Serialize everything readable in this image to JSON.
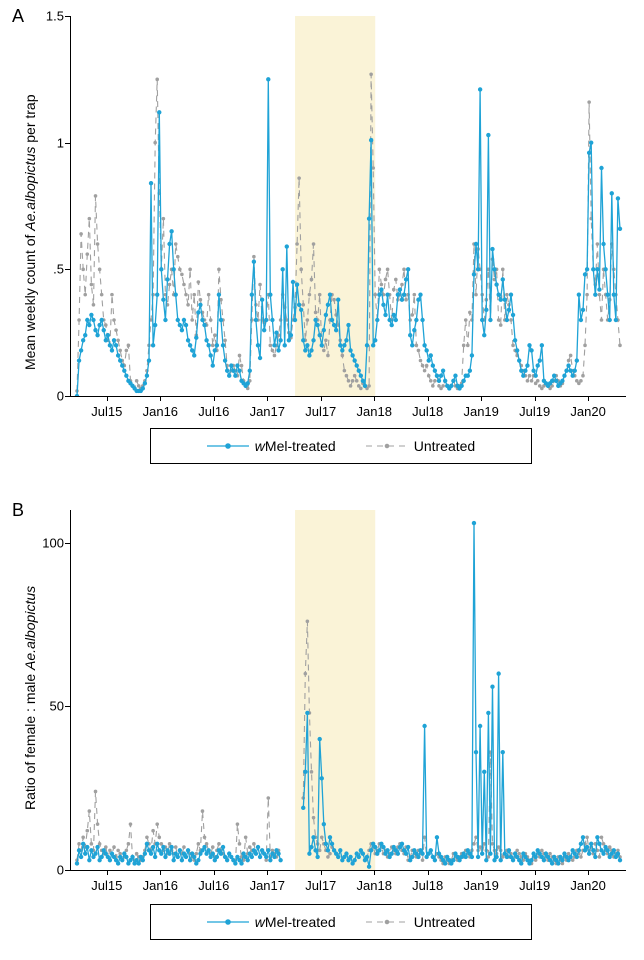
{
  "colors": {
    "treated": "#1fa3d6",
    "untreated": "#a0a0a0",
    "shade": "#f5e9b6",
    "axis": "#000000",
    "background": "#ffffff"
  },
  "legend": {
    "treated_label_prefix_italic": "w",
    "treated_label_rest": "Mel-treated",
    "untreated_label": "Untreated"
  },
  "panelA": {
    "label": "A",
    "type": "line",
    "ylabel_prefix": "Mean weekly count of ",
    "ylabel_italic": " Ae.albopictus ",
    "ylabel_suffix": "per trap",
    "ylim": [
      0,
      1.5
    ],
    "yticks": [
      0,
      0.5,
      1,
      1.5
    ],
    "ytick_labels": [
      "0",
      ".5",
      "1",
      "1.5"
    ],
    "xticks_idx": [
      15,
      41,
      67,
      93,
      119,
      145,
      171,
      197,
      223,
      249
    ],
    "xtick_labels": [
      "Jul15",
      "Jan16",
      "Jul16",
      "Jan17",
      "Jul17",
      "Jan18",
      "Jul18",
      "Jan19",
      "Jul19",
      "Jan20"
    ],
    "x_n": 265,
    "shade_x": [
      106,
      145
    ],
    "treated": [
      0.0,
      0.14,
      0.18,
      0.22,
      0.24,
      0.3,
      0.28,
      0.32,
      0.3,
      0.26,
      0.24,
      0.28,
      0.3,
      0.26,
      0.22,
      0.24,
      0.2,
      0.18,
      0.22,
      0.2,
      0.16,
      0.14,
      0.12,
      0.1,
      0.08,
      0.06,
      0.05,
      0.04,
      0.03,
      0.02,
      0.02,
      0.02,
      0.03,
      0.05,
      0.08,
      0.14,
      0.84,
      0.2,
      0.28,
      0.4,
      1.12,
      0.5,
      0.38,
      0.3,
      0.46,
      0.6,
      0.65,
      0.5,
      0.4,
      0.3,
      0.28,
      0.26,
      0.3,
      0.28,
      0.22,
      0.2,
      0.18,
      0.16,
      0.23,
      0.33,
      0.36,
      0.3,
      0.28,
      0.22,
      0.2,
      0.16,
      0.12,
      0.18,
      0.2,
      0.4,
      0.3,
      0.2,
      0.14,
      0.1,
      0.08,
      0.12,
      0.1,
      0.08,
      0.12,
      0.1,
      0.06,
      0.05,
      0.04,
      0.05,
      0.1,
      0.4,
      0.53,
      0.3,
      0.2,
      0.15,
      0.38,
      0.26,
      0.3,
      1.25,
      0.4,
      0.3,
      0.2,
      0.25,
      0.18,
      0.22,
      0.5,
      0.2,
      0.59,
      0.22,
      0.24,
      0.45,
      0.3,
      0.44,
      0.36,
      0.34,
      0.22,
      0.18,
      0.2,
      0.16,
      0.18,
      0.22,
      0.3,
      0.28,
      0.24,
      0.2,
      0.26,
      0.32,
      0.36,
      0.4,
      0.3,
      0.28,
      0.26,
      0.38,
      0.2,
      0.18,
      0.2,
      0.22,
      0.28,
      0.18,
      0.16,
      0.14,
      0.12,
      0.1,
      0.08,
      0.06,
      0.04,
      0.2,
      0.7,
      1.01,
      0.2,
      0.22,
      0.3,
      0.4,
      0.42,
      0.36,
      0.32,
      0.4,
      0.3,
      0.28,
      0.32,
      0.3,
      0.4,
      0.42,
      0.38,
      0.4,
      0.46,
      0.5,
      0.24,
      0.2,
      0.26,
      0.3,
      0.38,
      0.4,
      0.3,
      0.2,
      0.18,
      0.14,
      0.16,
      0.12,
      0.1,
      0.08,
      0.06,
      0.08,
      0.1,
      0.06,
      0.04,
      0.03,
      0.04,
      0.06,
      0.08,
      0.04,
      0.03,
      0.04,
      0.06,
      0.08,
      0.08,
      0.1,
      0.16,
      0.48,
      0.6,
      0.5,
      1.21,
      0.3,
      0.24,
      0.34,
      1.03,
      0.3,
      0.58,
      0.5,
      0.44,
      0.4,
      0.38,
      0.46,
      0.38,
      0.3,
      0.34,
      0.4,
      0.32,
      0.22,
      0.18,
      0.14,
      0.1,
      0.08,
      0.1,
      0.12,
      0.2,
      0.18,
      0.1,
      0.08,
      0.12,
      0.14,
      0.2,
      0.06,
      0.05,
      0.04,
      0.05,
      0.06,
      0.08,
      0.06,
      0.04,
      0.05,
      0.06,
      0.08,
      0.1,
      0.12,
      0.1,
      0.08,
      0.1,
      0.14,
      0.4,
      0.3,
      0.34,
      0.48,
      0.5,
      0.96,
      1.0,
      0.5,
      0.4,
      0.5,
      0.42,
      0.9,
      0.6,
      0.5,
      0.4,
      0.3,
      0.8,
      0.4,
      0.3,
      0.78,
      0.66
    ],
    "untreated": [
      0.02,
      0.3,
      0.64,
      0.5,
      0.4,
      0.56,
      0.7,
      0.44,
      0.36,
      0.79,
      0.6,
      0.5,
      0.4,
      0.3,
      0.28,
      0.22,
      0.2,
      0.4,
      0.3,
      0.26,
      0.22,
      0.18,
      0.14,
      0.12,
      0.18,
      0.2,
      0.06,
      0.04,
      0.03,
      0.06,
      0.04,
      0.03,
      0.04,
      0.06,
      0.1,
      0.2,
      0.3,
      0.4,
      1.0,
      1.25,
      0.8,
      0.5,
      0.7,
      0.4,
      0.36,
      0.44,
      0.5,
      0.4,
      0.6,
      0.55,
      0.5,
      0.48,
      0.44,
      0.4,
      0.36,
      0.5,
      0.3,
      0.4,
      0.24,
      0.45,
      0.38,
      0.33,
      0.3,
      0.28,
      0.4,
      0.3,
      0.2,
      0.24,
      0.18,
      0.5,
      0.38,
      0.3,
      0.22,
      0.12,
      0.08,
      0.1,
      0.12,
      0.1,
      0.08,
      0.16,
      0.12,
      0.06,
      0.04,
      0.03,
      0.06,
      0.3,
      0.55,
      0.36,
      0.3,
      0.44,
      0.3,
      0.29,
      0.3,
      0.4,
      0.2,
      0.18,
      0.16,
      0.2,
      0.24,
      0.3,
      0.4,
      0.35,
      0.3,
      0.25,
      0.23,
      0.3,
      0.35,
      0.6,
      0.86,
      0.5,
      0.36,
      0.22,
      0.3,
      0.4,
      0.46,
      0.6,
      0.33,
      0.3,
      0.4,
      0.2,
      0.18,
      0.22,
      0.16,
      0.3,
      0.4,
      0.38,
      0.32,
      0.28,
      0.22,
      0.16,
      0.1,
      0.08,
      0.06,
      0.04,
      0.06,
      0.08,
      0.06,
      0.04,
      0.03,
      0.05,
      0.04,
      0.03,
      0.04,
      1.27,
      0.9,
      0.4,
      0.3,
      0.5,
      0.44,
      0.4,
      0.46,
      0.5,
      0.4,
      0.3,
      0.42,
      0.46,
      0.38,
      0.4,
      0.44,
      0.5,
      0.38,
      0.4,
      0.3,
      0.32,
      0.4,
      0.2,
      0.18,
      0.14,
      0.12,
      0.1,
      0.12,
      0.08,
      0.06,
      0.04,
      0.06,
      0.08,
      0.04,
      0.03,
      0.04,
      0.06,
      0.04,
      0.03,
      0.04,
      0.06,
      0.04,
      0.03,
      0.04,
      0.05,
      0.2,
      0.3,
      0.2,
      0.33,
      0.3,
      0.6,
      0.4,
      0.58,
      0.5,
      0.4,
      0.3,
      0.38,
      0.5,
      0.3,
      0.54,
      0.46,
      0.5,
      0.3,
      0.28,
      0.5,
      0.3,
      0.4,
      0.36,
      0.3,
      0.2,
      0.18,
      0.16,
      0.14,
      0.12,
      0.1,
      0.08,
      0.06,
      0.08,
      0.06,
      0.08,
      0.05,
      0.06,
      0.04,
      0.03,
      0.04,
      0.05,
      0.04,
      0.03,
      0.04,
      0.06,
      0.08,
      0.06,
      0.04,
      0.05,
      0.08,
      0.1,
      0.14,
      0.16,
      0.1,
      0.08,
      0.06,
      0.05,
      0.06,
      0.08,
      0.2,
      0.4,
      1.16,
      0.7,
      0.5,
      0.44,
      0.6,
      0.4,
      0.3,
      0.5,
      0.4,
      0.3,
      0.38,
      0.6,
      0.5,
      0.4,
      0.3,
      0.2
    ]
  },
  "panelB": {
    "label": "B",
    "type": "line",
    "ylabel_prefix": "Ratio of female : male ",
    "ylabel_italic": " Ae.albopictus",
    "ylim": [
      0,
      110
    ],
    "yticks": [
      0,
      50,
      100
    ],
    "ytick_labels": [
      "0",
      "50",
      "100"
    ],
    "xticks_idx": [
      15,
      41,
      67,
      93,
      119,
      145,
      171,
      197,
      223,
      249
    ],
    "xtick_labels": [
      "Jul15",
      "Jan16",
      "Jul16",
      "Jan17",
      "Jul17",
      "Jan18",
      "Jul18",
      "Jan19",
      "Jul19",
      "Jan20"
    ],
    "x_n": 265,
    "shade_x": [
      106,
      145
    ],
    "treated": [
      2,
      6,
      4,
      8,
      5,
      7,
      3,
      6,
      4,
      5,
      7,
      3,
      4,
      6,
      5,
      4,
      3,
      5,
      4,
      3,
      2,
      4,
      3,
      5,
      4,
      2,
      3,
      4,
      2,
      3,
      2,
      4,
      3,
      5,
      8,
      6,
      5,
      7,
      4,
      8,
      6,
      5,
      7,
      4,
      6,
      5,
      7,
      3,
      5,
      4,
      6,
      3,
      5,
      4,
      6,
      3,
      5,
      4,
      2,
      3,
      5,
      6,
      7,
      5,
      6,
      4,
      5,
      3,
      4,
      6,
      5,
      7,
      4,
      3,
      5,
      4,
      3,
      2,
      4,
      3,
      2,
      5,
      4,
      3,
      5,
      4,
      6,
      5,
      7,
      4,
      6,
      5,
      4,
      6,
      3,
      5,
      4,
      6,
      5,
      3,
      null,
      null,
      null,
      null,
      null,
      null,
      null,
      null,
      null,
      null,
      19,
      30,
      48,
      5,
      7,
      10,
      6,
      4,
      40,
      28,
      14,
      8,
      6,
      10,
      8,
      6,
      5,
      4,
      6,
      3,
      4,
      5,
      3,
      4,
      2,
      3,
      5,
      4,
      6,
      5,
      3,
      4,
      1,
      6,
      8,
      7,
      5,
      6,
      8,
      7,
      5,
      6,
      4,
      5,
      7,
      6,
      5,
      7,
      8,
      6,
      5,
      7,
      3,
      4,
      6,
      5,
      4,
      6,
      5,
      44,
      4,
      5,
      6,
      4,
      3,
      10,
      5,
      4,
      3,
      2,
      4,
      3,
      2,
      3,
      5,
      4,
      3,
      4,
      5,
      4,
      6,
      5,
      4,
      106,
      36,
      4,
      44,
      5,
      30,
      3,
      48,
      5,
      56,
      3,
      4,
      60,
      3,
      36,
      5,
      4,
      6,
      4,
      3,
      5,
      4,
      3,
      2,
      5,
      4,
      3,
      2,
      3,
      5,
      4,
      6,
      5,
      4,
      3,
      5,
      4,
      3,
      2,
      4,
      3,
      2,
      4,
      3,
      5,
      4,
      3,
      4,
      6,
      5,
      4,
      6,
      8,
      10,
      6,
      7,
      5,
      8,
      6,
      4,
      10,
      8,
      6,
      5,
      7,
      6,
      4,
      5,
      6,
      4,
      5,
      3
    ],
    "untreated": [
      3,
      8,
      6,
      10,
      7,
      12,
      18,
      8,
      6,
      24,
      14,
      8,
      6,
      5,
      7,
      4,
      6,
      5,
      7,
      4,
      6,
      5,
      3,
      4,
      6,
      8,
      14,
      4,
      3,
      5,
      4,
      3,
      4,
      6,
      10,
      8,
      6,
      12,
      8,
      14,
      10,
      8,
      6,
      7,
      5,
      8,
      6,
      5,
      7,
      4,
      6,
      5,
      7,
      4,
      6,
      5,
      4,
      3,
      5,
      8,
      6,
      18,
      10,
      8,
      6,
      5,
      7,
      4,
      6,
      8,
      6,
      5,
      4,
      3,
      5,
      4,
      3,
      2,
      14,
      8,
      4,
      3,
      10,
      5,
      7,
      6,
      8,
      5,
      7,
      4,
      6,
      5,
      3,
      22,
      4,
      6,
      5,
      4,
      6,
      3,
      null,
      null,
      null,
      null,
      null,
      null,
      null,
      null,
      null,
      null,
      22,
      60,
      76,
      48,
      30,
      16,
      10,
      8,
      6,
      10,
      8,
      6,
      4,
      5,
      7,
      6,
      5,
      4,
      6,
      3,
      4,
      5,
      3,
      4,
      2,
      3,
      5,
      4,
      6,
      5,
      3,
      4,
      6,
      8,
      7,
      5,
      6,
      8,
      7,
      5,
      6,
      4,
      5,
      7,
      6,
      5,
      7,
      8,
      6,
      5,
      7,
      3,
      4,
      6,
      5,
      4,
      6,
      5,
      3,
      10,
      4,
      5,
      6,
      4,
      3,
      5,
      4,
      3,
      2,
      4,
      3,
      2,
      3,
      5,
      4,
      3,
      4,
      5,
      4,
      6,
      5,
      4,
      6,
      8,
      10,
      6,
      7,
      5,
      8,
      6,
      4,
      36,
      8,
      6,
      5,
      7,
      6,
      4,
      5,
      6,
      4,
      5,
      3,
      4,
      6,
      5,
      4,
      3,
      5,
      4,
      3,
      2,
      4,
      3,
      5,
      4,
      6,
      5,
      4,
      3,
      5,
      4,
      3,
      2,
      4,
      3,
      2,
      4,
      3,
      5,
      4,
      3,
      4,
      6,
      5,
      4,
      6,
      8,
      10,
      6,
      7,
      5,
      8,
      6,
      4,
      10,
      8,
      6,
      5,
      7,
      6,
      4,
      5,
      6,
      4
    ]
  }
}
